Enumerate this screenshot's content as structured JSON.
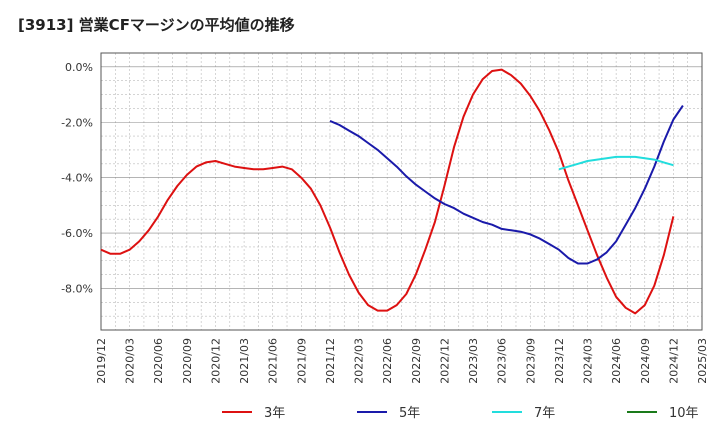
{
  "chart_data": {
    "type": "line",
    "title": "[3913]  営業CFマージンの平均値の推移",
    "xlabel": "",
    "ylabel": "",
    "ylim": [
      -9.5,
      0.5
    ],
    "yticks": [
      0.0,
      -2.0,
      -4.0,
      -6.0,
      -8.0
    ],
    "ytick_labels": [
      "0.0%",
      "-2.0%",
      "-4.0%",
      "-6.0%",
      "-8.0%"
    ],
    "xlim": [
      "2019-12",
      "2025-03"
    ],
    "xtick_labels": [
      "2019/12",
      "2020/03",
      "2020/06",
      "2020/09",
      "2020/12",
      "2021/03",
      "2021/06",
      "2021/09",
      "2021/12",
      "2022/03",
      "2022/06",
      "2022/09",
      "2022/12",
      "2023/03",
      "2023/06",
      "2023/09",
      "2023/12",
      "2024/03",
      "2024/06",
      "2024/09",
      "2024/12",
      "2025/03"
    ],
    "grid": true,
    "legend_position": "bottom",
    "series": [
      {
        "name": "3年",
        "color": "#dd1111",
        "points": [
          [
            "2019-12",
            -6.6
          ],
          [
            "2020-01",
            -6.75
          ],
          [
            "2020-02",
            -6.75
          ],
          [
            "2020-03",
            -6.6
          ],
          [
            "2020-04",
            -6.3
          ],
          [
            "2020-05",
            -5.9
          ],
          [
            "2020-06",
            -5.4
          ],
          [
            "2020-07",
            -4.8
          ],
          [
            "2020-08",
            -4.3
          ],
          [
            "2020-09",
            -3.9
          ],
          [
            "2020-10",
            -3.6
          ],
          [
            "2020-11",
            -3.45
          ],
          [
            "2020-12",
            -3.4
          ],
          [
            "2021-01",
            -3.5
          ],
          [
            "2021-02",
            -3.6
          ],
          [
            "2021-03",
            -3.65
          ],
          [
            "2021-04",
            -3.7
          ],
          [
            "2021-05",
            -3.7
          ],
          [
            "2021-06",
            -3.65
          ],
          [
            "2021-07",
            -3.6
          ],
          [
            "2021-08",
            -3.7
          ],
          [
            "2021-09",
            -4.0
          ],
          [
            "2021-10",
            -4.4
          ],
          [
            "2021-11",
            -5.0
          ],
          [
            "2021-12",
            -5.8
          ],
          [
            "2022-01",
            -6.7
          ],
          [
            "2022-02",
            -7.5
          ],
          [
            "2022-03",
            -8.15
          ],
          [
            "2022-04",
            -8.6
          ],
          [
            "2022-05",
            -8.8
          ],
          [
            "2022-06",
            -8.8
          ],
          [
            "2022-07",
            -8.6
          ],
          [
            "2022-08",
            -8.2
          ],
          [
            "2022-09",
            -7.5
          ],
          [
            "2022-10",
            -6.6
          ],
          [
            "2022-11",
            -5.6
          ],
          [
            "2022-12",
            -4.3
          ],
          [
            "2023-01",
            -2.9
          ],
          [
            "2023-02",
            -1.8
          ],
          [
            "2023-03",
            -1.0
          ],
          [
            "2023-04",
            -0.45
          ],
          [
            "2023-05",
            -0.15
          ],
          [
            "2023-06",
            -0.1
          ],
          [
            "2023-07",
            -0.3
          ],
          [
            "2023-08",
            -0.6
          ],
          [
            "2023-09",
            -1.05
          ],
          [
            "2023-10",
            -1.6
          ],
          [
            "2023-11",
            -2.3
          ],
          [
            "2023-12",
            -3.1
          ],
          [
            "2024-01",
            -4.1
          ],
          [
            "2024-02",
            -5.0
          ],
          [
            "2024-03",
            -5.9
          ],
          [
            "2024-04",
            -6.8
          ],
          [
            "2024-05",
            -7.6
          ],
          [
            "2024-06",
            -8.3
          ],
          [
            "2024-07",
            -8.7
          ],
          [
            "2024-08",
            -8.9
          ],
          [
            "2024-09",
            -8.6
          ],
          [
            "2024-10",
            -7.9
          ],
          [
            "2024-11",
            -6.8
          ],
          [
            "2024-12",
            -5.4
          ]
        ]
      },
      {
        "name": "5年",
        "color": "#1a1aaa",
        "points": [
          [
            "2021-12",
            -1.95
          ],
          [
            "2022-01",
            -2.1
          ],
          [
            "2022-02",
            -2.3
          ],
          [
            "2022-03",
            -2.5
          ],
          [
            "2022-04",
            -2.75
          ],
          [
            "2022-05",
            -3.0
          ],
          [
            "2022-06",
            -3.3
          ],
          [
            "2022-07",
            -3.6
          ],
          [
            "2022-08",
            -3.95
          ],
          [
            "2022-09",
            -4.25
          ],
          [
            "2022-10",
            -4.5
          ],
          [
            "2022-11",
            -4.75
          ],
          [
            "2022-12",
            -4.95
          ],
          [
            "2023-01",
            -5.1
          ],
          [
            "2023-02",
            -5.3
          ],
          [
            "2023-03",
            -5.45
          ],
          [
            "2023-04",
            -5.6
          ],
          [
            "2023-05",
            -5.7
          ],
          [
            "2023-06",
            -5.85
          ],
          [
            "2023-07",
            -5.9
          ],
          [
            "2023-08",
            -5.95
          ],
          [
            "2023-09",
            -6.05
          ],
          [
            "2023-10",
            -6.2
          ],
          [
            "2023-11",
            -6.4
          ],
          [
            "2023-12",
            -6.6
          ],
          [
            "2024-01",
            -6.9
          ],
          [
            "2024-02",
            -7.1
          ],
          [
            "2024-03",
            -7.1
          ],
          [
            "2024-04",
            -6.95
          ],
          [
            "2024-05",
            -6.7
          ],
          [
            "2024-06",
            -6.3
          ],
          [
            "2024-07",
            -5.7
          ],
          [
            "2024-08",
            -5.1
          ],
          [
            "2024-09",
            -4.4
          ],
          [
            "2024-10",
            -3.6
          ],
          [
            "2024-11",
            -2.7
          ],
          [
            "2024-12",
            -1.9
          ],
          [
            "2025-01",
            -1.4
          ]
        ]
      },
      {
        "name": "7年",
        "color": "#22dddd",
        "points": [
          [
            "2023-12",
            -3.7
          ],
          [
            "2024-01",
            -3.6
          ],
          [
            "2024-02",
            -3.5
          ],
          [
            "2024-03",
            -3.4
          ],
          [
            "2024-04",
            -3.35
          ],
          [
            "2024-05",
            -3.3
          ],
          [
            "2024-06",
            -3.25
          ],
          [
            "2024-07",
            -3.25
          ],
          [
            "2024-08",
            -3.25
          ],
          [
            "2024-09",
            -3.3
          ],
          [
            "2024-10",
            -3.35
          ],
          [
            "2024-11",
            -3.45
          ],
          [
            "2024-12",
            -3.55
          ]
        ]
      },
      {
        "name": "10年",
        "color": "#1a7a1a",
        "points": []
      }
    ]
  }
}
